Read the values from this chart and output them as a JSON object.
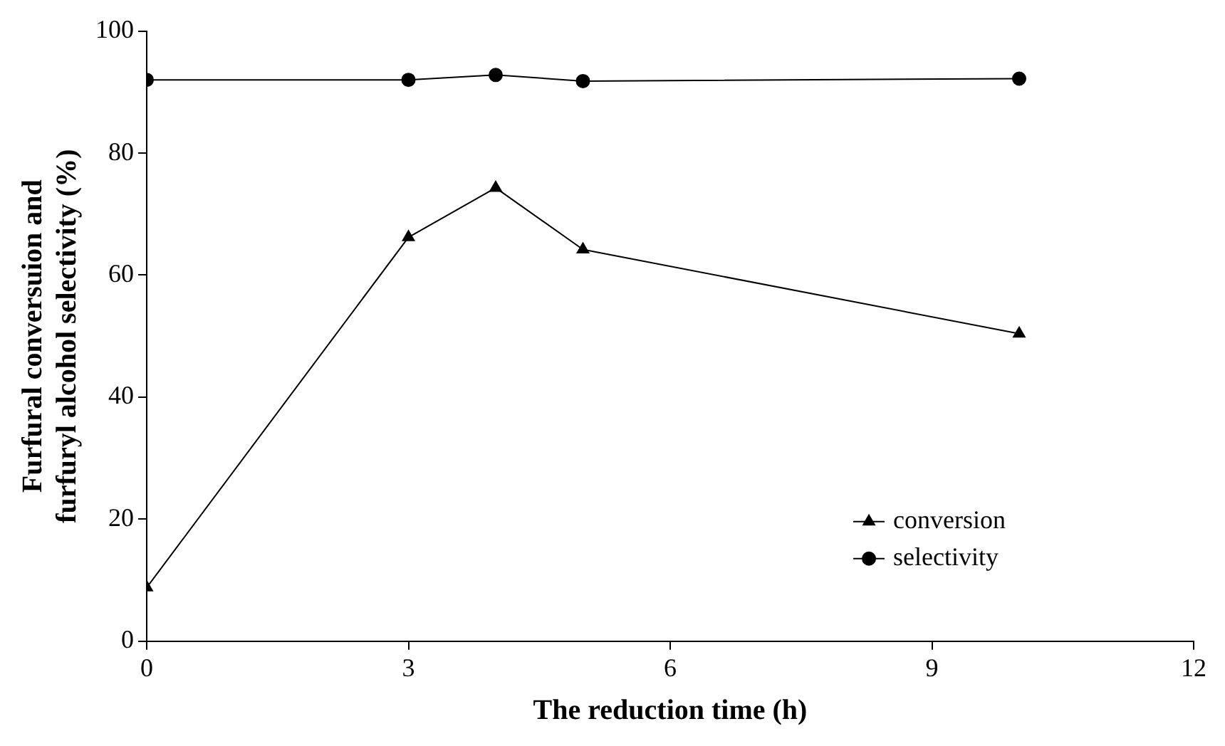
{
  "chart_data": {
    "type": "line",
    "xlabel": "The reduction time (h)",
    "ylabel": "Furfural conversuion and\nfurfuryl alcohol selectivity (%)",
    "x": [
      0,
      3,
      4,
      5,
      10
    ],
    "series": [
      {
        "name": "conversion",
        "color": "#000000",
        "marker": "triangle",
        "values": [
          8.8,
          66.2,
          74.3,
          64.2,
          50.4
        ]
      },
      {
        "name": "selectivity",
        "color": "#000000",
        "marker": "circle",
        "values": [
          92,
          92,
          92.8,
          91.8,
          92.2
        ]
      }
    ],
    "xlim": [
      0,
      12
    ],
    "xticks": [
      0,
      3,
      6,
      9,
      12
    ],
    "ylim": [
      0,
      100
    ],
    "yticks": [
      0,
      20,
      40,
      60,
      80,
      100
    ],
    "grid": false,
    "legend": "bottom right",
    "line_style": "solid"
  }
}
